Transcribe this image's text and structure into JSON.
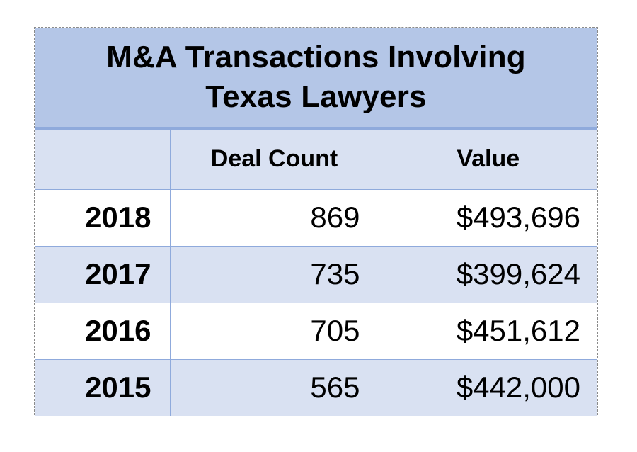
{
  "title": {
    "line1": "M&A Transactions Involving",
    "line2": "Texas Lawyers"
  },
  "table": {
    "headers": [
      "",
      "Deal Count",
      "Value"
    ],
    "rows": [
      {
        "year": "2018",
        "deal_count": "869",
        "value": "$493,696"
      },
      {
        "year": "2017",
        "deal_count": "735",
        "value": "$399,624"
      },
      {
        "year": "2016",
        "deal_count": "705",
        "value": "$451,612"
      },
      {
        "year": "2015",
        "deal_count": "565",
        "value": "$442,000"
      }
    ]
  },
  "colors": {
    "title_band": "#b4c6e7",
    "header_row": "#d9e1f2",
    "band_row": "#d9e1f2",
    "grid_line": "#8faadc"
  }
}
